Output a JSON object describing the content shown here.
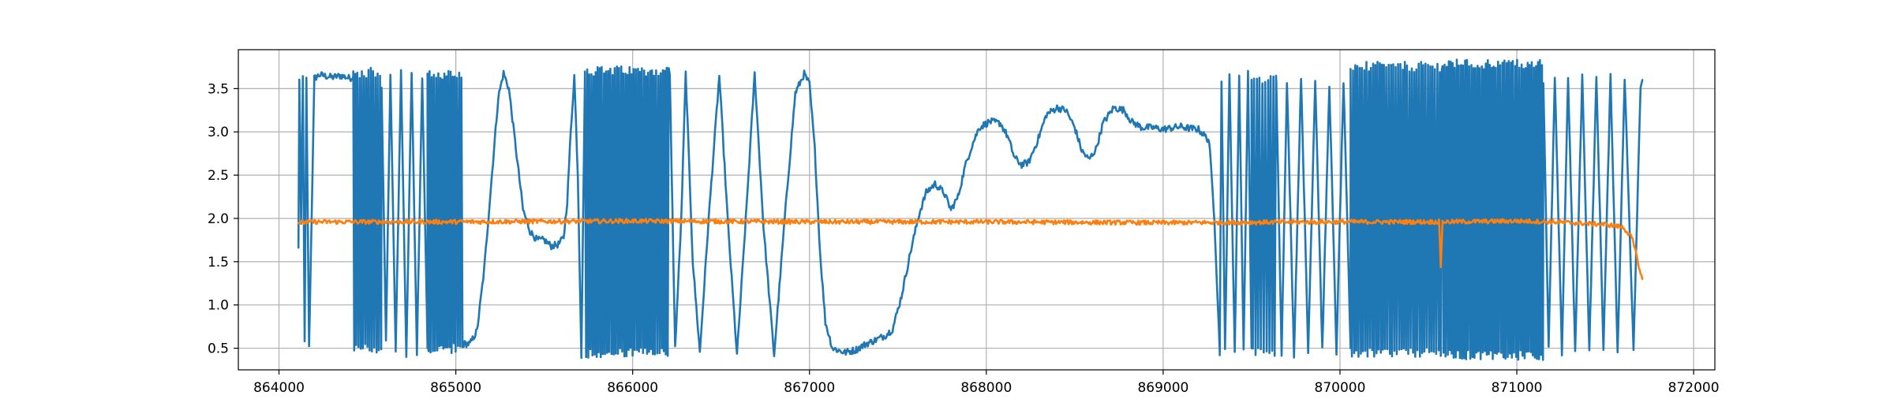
{
  "chart_data": {
    "type": "line",
    "title": "",
    "xlabel": "",
    "ylabel": "",
    "xlim": [
      863770,
      872120
    ],
    "ylim": [
      0.25,
      3.95
    ],
    "grid": true,
    "legend": "none",
    "x_ticks": [
      864000,
      865000,
      866000,
      867000,
      868000,
      869000,
      870000,
      871000,
      872000
    ],
    "x_tick_labels": [
      "864000",
      "865000",
      "866000",
      "867000",
      "868000",
      "869000",
      "870000",
      "871000",
      "872000"
    ],
    "y_ticks": [
      0.5,
      1.0,
      1.5,
      2.0,
      2.5,
      3.0,
      3.5
    ],
    "y_tick_labels": [
      "0.5",
      "1.0",
      "1.5",
      "2.0",
      "2.5",
      "3.0",
      "3.5"
    ],
    "series": [
      {
        "color": "#1f77b4",
        "noise": 0.04,
        "segments": [
          {
            "kind": "line",
            "points": [
              [
                864110,
                1.65
              ],
              [
                864115,
                3.62
              ],
              [
                864125,
                1.9
              ],
              [
                864135,
                3.63
              ],
              [
                864145,
                0.55
              ],
              [
                864155,
                3.6
              ],
              [
                864170,
                0.5
              ],
              [
                864200,
                3.62
              ],
              [
                864230,
                3.66
              ],
              [
                864300,
                3.63
              ],
              [
                864350,
                3.65
              ],
              [
                864400,
                3.62
              ],
              [
                864420,
                3.64
              ]
            ]
          },
          {
            "kind": "osc",
            "x0": 864420,
            "x1": 864580,
            "cycles": 13,
            "low": 0.5,
            "high": 3.68
          },
          {
            "kind": "line",
            "points": [
              [
                864580,
                3.55
              ],
              [
                864605,
                0.55
              ],
              [
                864630,
                3.68
              ],
              [
                864660,
                0.45
              ],
              [
                864690,
                3.7
              ],
              [
                864720,
                0.42
              ],
              [
                864750,
                3.68
              ],
              [
                864780,
                0.45
              ],
              [
                864810,
                3.65
              ],
              [
                864840,
                0.5
              ]
            ]
          },
          {
            "kind": "osc",
            "x0": 864840,
            "x1": 865040,
            "cycles": 17,
            "low": 0.5,
            "high": 3.65
          },
          {
            "kind": "line",
            "points": [
              [
                865040,
                0.55
              ],
              [
                865080,
                0.55
              ],
              [
                865120,
                0.7
              ],
              [
                865160,
                1.4
              ],
              [
                865200,
                2.4
              ],
              [
                865240,
                3.4
              ],
              [
                865270,
                3.68
              ],
              [
                865300,
                3.5
              ],
              [
                865340,
                2.8
              ],
              [
                865380,
                2.1
              ],
              [
                865420,
                1.85
              ],
              [
                865460,
                1.75
              ],
              [
                865500,
                1.75
              ],
              [
                865540,
                1.68
              ],
              [
                865580,
                1.7
              ],
              [
                865610,
                1.78
              ],
              [
                865630,
                2.2
              ],
              [
                865650,
                3.0
              ],
              [
                865670,
                3.65
              ],
              [
                865690,
                2.5
              ],
              [
                865710,
                0.42
              ],
              [
                865730,
                3.65
              ]
            ]
          },
          {
            "kind": "osc",
            "x0": 865730,
            "x1": 866210,
            "cycles": 40,
            "low": 0.45,
            "high": 3.7
          },
          {
            "kind": "line",
            "points": [
              [
                866210,
                3.65
              ],
              [
                866240,
                0.5
              ],
              [
                866275,
                2.0
              ],
              [
                866300,
                3.68
              ],
              [
                866340,
                1.5
              ],
              [
                866380,
                0.45
              ],
              [
                866430,
                2.0
              ],
              [
                866490,
                3.65
              ],
              [
                866540,
                1.9
              ],
              [
                866590,
                0.42
              ],
              [
                866640,
                2.0
              ],
              [
                866690,
                3.67
              ],
              [
                866740,
                1.9
              ],
              [
                866800,
                0.42
              ],
              [
                866860,
                2.0
              ],
              [
                866920,
                3.45
              ],
              [
                866970,
                3.67
              ],
              [
                867000,
                3.55
              ],
              [
                867030,
                2.8
              ],
              [
                867060,
                1.6
              ],
              [
                867090,
                0.8
              ],
              [
                867130,
                0.5
              ],
              [
                867200,
                0.45
              ],
              [
                867260,
                0.48
              ],
              [
                867320,
                0.55
              ],
              [
                867380,
                0.6
              ],
              [
                867430,
                0.65
              ],
              [
                867470,
                0.72
              ],
              [
                867520,
                1.1
              ],
              [
                867570,
                1.6
              ],
              [
                867620,
                2.05
              ],
              [
                867660,
                2.3
              ],
              [
                867710,
                2.4
              ],
              [
                867760,
                2.3
              ],
              [
                867800,
                2.1
              ],
              [
                867840,
                2.25
              ],
              [
                867880,
                2.6
              ],
              [
                867920,
                2.85
              ],
              [
                867960,
                3.05
              ],
              [
                868020,
                3.12
              ],
              [
                868080,
                3.1
              ],
              [
                868120,
                2.95
              ],
              [
                868160,
                2.7
              ],
              [
                868200,
                2.62
              ],
              [
                868240,
                2.65
              ],
              [
                868290,
                2.9
              ],
              [
                868340,
                3.2
              ],
              [
                868400,
                3.28
              ],
              [
                868450,
                3.25
              ],
              [
                868500,
                3.05
              ],
              [
                868540,
                2.78
              ],
              [
                868580,
                2.68
              ],
              [
                868620,
                2.8
              ],
              [
                868660,
                3.1
              ],
              [
                868720,
                3.28
              ],
              [
                868780,
                3.25
              ],
              [
                868820,
                3.12
              ],
              [
                868880,
                3.05
              ],
              [
                868940,
                3.05
              ],
              [
                869000,
                3.03
              ],
              [
                869060,
                3.05
              ],
              [
                869100,
                3.06
              ],
              [
                869150,
                3.04
              ],
              [
                869200,
                3.03
              ],
              [
                869260,
                2.9
              ],
              [
                869290,
                2.0
              ],
              [
                869320,
                0.45
              ]
            ]
          },
          {
            "kind": "line",
            "points": [
              [
                869320,
                0.45
              ],
              [
                869330,
                3.62
              ],
              [
                869350,
                0.48
              ],
              [
                869375,
                3.65
              ],
              [
                869405,
                0.45
              ],
              [
                869430,
                3.65
              ],
              [
                869455,
                0.48
              ],
              [
                869480,
                3.68
              ],
              [
                869500,
                0.5
              ]
            ]
          },
          {
            "kind": "osc",
            "x0": 869500,
            "x1": 869640,
            "cycles": 9,
            "low": 0.45,
            "high": 3.6
          },
          {
            "kind": "line",
            "points": [
              [
                869640,
                3.55
              ],
              [
                869670,
                0.45
              ],
              [
                869700,
                3.6
              ],
              [
                869740,
                0.42
              ],
              [
                869780,
                3.65
              ],
              [
                869820,
                0.45
              ],
              [
                869860,
                3.62
              ],
              [
                869900,
                0.48
              ],
              [
                869940,
                3.55
              ],
              [
                869980,
                0.45
              ],
              [
                870020,
                3.58
              ],
              [
                870060,
                0.5
              ]
            ]
          },
          {
            "kind": "osc",
            "x0": 870060,
            "x1": 870580,
            "cycles": 40,
            "low": 0.45,
            "high": 3.75
          },
          {
            "kind": "osc",
            "x0": 870580,
            "x1": 871150,
            "cycles": 48,
            "low": 0.42,
            "high": 3.78
          },
          {
            "kind": "line",
            "points": [
              [
                871150,
                3.6
              ],
              [
                871180,
                0.5
              ],
              [
                871215,
                3.62
              ],
              [
                871255,
                0.45
              ],
              [
                871290,
                3.64
              ],
              [
                871330,
                0.45
              ],
              [
                871370,
                3.65
              ],
              [
                871410,
                0.48
              ],
              [
                871450,
                3.63
              ],
              [
                871490,
                0.5
              ],
              [
                871530,
                3.65
              ],
              [
                871570,
                0.45
              ],
              [
                871610,
                3.62
              ],
              [
                871660,
                0.5
              ],
              [
                871700,
                3.55
              ],
              [
                871710,
                3.6
              ]
            ]
          }
        ]
      },
      {
        "color": "#ff7f0e",
        "noise": 0.025,
        "segments": [
          {
            "kind": "line",
            "points": [
              [
                864110,
                1.95
              ],
              [
                864200,
                1.96
              ],
              [
                865000,
                1.96
              ],
              [
                866000,
                1.97
              ],
              [
                867000,
                1.96
              ],
              [
                868000,
                1.96
              ],
              [
                869000,
                1.95
              ],
              [
                870000,
                1.96
              ],
              [
                870550,
                1.96
              ],
              [
                870560,
                1.97
              ],
              [
                870570,
                1.45
              ],
              [
                870580,
                1.96
              ],
              [
                871000,
                1.97
              ],
              [
                871200,
                1.96
              ],
              [
                871500,
                1.93
              ],
              [
                871600,
                1.9
              ],
              [
                871650,
                1.78
              ],
              [
                871680,
                1.55
              ],
              [
                871700,
                1.35
              ],
              [
                871710,
                1.3
              ]
            ]
          }
        ]
      }
    ]
  }
}
